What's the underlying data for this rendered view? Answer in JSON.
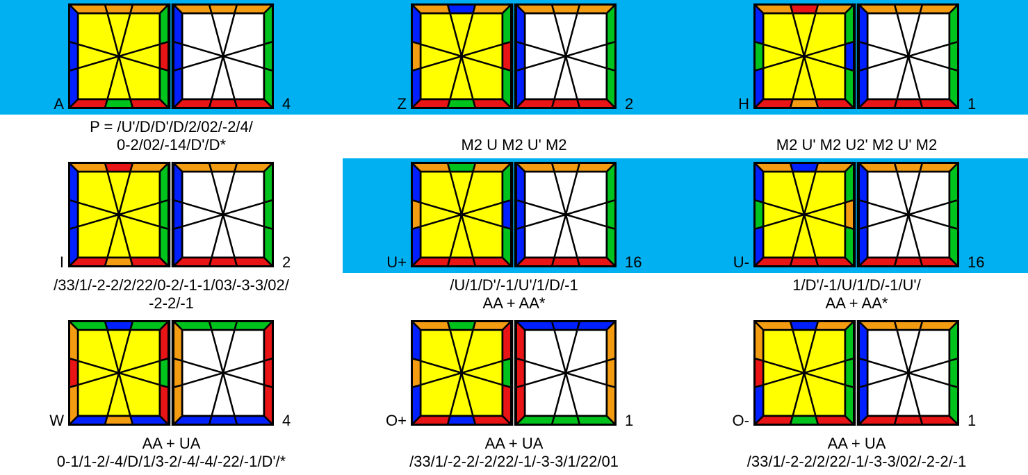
{
  "colors": {
    "highlight_band": "#00b0f0",
    "yellow": "#ffff00",
    "white": "#ffffff",
    "orange": "#f39c12",
    "red": "#e81416",
    "blue": "#0020ff",
    "green": "#00c21d",
    "outline": "#000000"
  },
  "cases": [
    {
      "name": "A",
      "count": "4",
      "highlight": true,
      "alg": [
        "P = /U'/D/D'/D/2/02/-2/4/",
        "0-2/02/-14/D'/D*"
      ],
      "left": {
        "top": [
          "O",
          "O",
          "O"
        ],
        "right": [
          "G",
          "R",
          "G"
        ],
        "bottom": [
          "R",
          "G",
          "R"
        ],
        "left": [
          "B",
          "B",
          "B"
        ]
      },
      "right": {
        "top": [
          "O",
          "O",
          "O"
        ],
        "right": [
          "G",
          "G",
          "G"
        ],
        "bottom": [
          "R",
          "R",
          "R"
        ],
        "left": [
          "B",
          "B",
          "B"
        ]
      }
    },
    {
      "name": "Z",
      "count": "2",
      "highlight": true,
      "alg": [
        "",
        "M2 U M2 U' M2"
      ],
      "left": {
        "top": [
          "O",
          "B",
          "O"
        ],
        "right": [
          "G",
          "R",
          "G"
        ],
        "bottom": [
          "R",
          "G",
          "R"
        ],
        "left": [
          "B",
          "O",
          "B"
        ]
      },
      "right": {
        "top": [
          "O",
          "O",
          "O"
        ],
        "right": [
          "G",
          "G",
          "G"
        ],
        "bottom": [
          "R",
          "R",
          "R"
        ],
        "left": [
          "B",
          "B",
          "B"
        ]
      }
    },
    {
      "name": "H",
      "count": "1",
      "highlight": true,
      "alg": [
        "",
        "M2 U' M2 U2' M2 U' M2"
      ],
      "left": {
        "top": [
          "O",
          "R",
          "O"
        ],
        "right": [
          "G",
          "B",
          "G"
        ],
        "bottom": [
          "R",
          "O",
          "R"
        ],
        "left": [
          "B",
          "G",
          "B"
        ]
      },
      "right": {
        "top": [
          "O",
          "O",
          "O"
        ],
        "right": [
          "G",
          "G",
          "G"
        ],
        "bottom": [
          "R",
          "R",
          "R"
        ],
        "left": [
          "B",
          "B",
          "B"
        ]
      }
    },
    {
      "name": "I",
      "count": "2",
      "highlight": false,
      "alg": [
        "/33/1/-2-2/2/22/0-2/-1-1/03/-3-3/02/",
        "-2-2/-1"
      ],
      "left": {
        "top": [
          "O",
          "R",
          "O"
        ],
        "right": [
          "G",
          "G",
          "G"
        ],
        "bottom": [
          "R",
          "O",
          "R"
        ],
        "left": [
          "B",
          "B",
          "B"
        ]
      },
      "right": {
        "top": [
          "O",
          "O",
          "O"
        ],
        "right": [
          "G",
          "G",
          "G"
        ],
        "bottom": [
          "R",
          "R",
          "R"
        ],
        "left": [
          "B",
          "B",
          "B"
        ]
      }
    },
    {
      "name": "U+",
      "count": "16",
      "highlight": true,
      "alg": [
        "/U/1/D'/-1/U'/1/D/-1",
        "AA + AA*"
      ],
      "left": {
        "top": [
          "O",
          "G",
          "O"
        ],
        "right": [
          "G",
          "B",
          "G"
        ],
        "bottom": [
          "R",
          "R",
          "R"
        ],
        "left": [
          "B",
          "O",
          "B"
        ]
      },
      "right": {
        "top": [
          "O",
          "O",
          "O"
        ],
        "right": [
          "G",
          "G",
          "G"
        ],
        "bottom": [
          "R",
          "R",
          "R"
        ],
        "left": [
          "B",
          "B",
          "B"
        ]
      }
    },
    {
      "name": "U-",
      "count": "16",
      "highlight": true,
      "alg": [
        "1/D'/-1/U/1/D/-1/U'/",
        "AA + AA*"
      ],
      "left": {
        "top": [
          "O",
          "B",
          "O"
        ],
        "right": [
          "G",
          "O",
          "G"
        ],
        "bottom": [
          "R",
          "R",
          "R"
        ],
        "left": [
          "B",
          "G",
          "B"
        ]
      },
      "right": {
        "top": [
          "O",
          "O",
          "O"
        ],
        "right": [
          "G",
          "G",
          "G"
        ],
        "bottom": [
          "R",
          "R",
          "R"
        ],
        "left": [
          "B",
          "B",
          "B"
        ]
      }
    },
    {
      "name": "W",
      "count": "4",
      "highlight": false,
      "alg": [
        "AA + UA",
        "0-1/1-2/-4/D/1/3-2/-4/-4/-22/-1/D'/*"
      ],
      "left": {
        "top": [
          "G",
          "B",
          "G"
        ],
        "right": [
          "R",
          "G",
          "R"
        ],
        "bottom": [
          "B",
          "O",
          "B"
        ],
        "left": [
          "O",
          "R",
          "O"
        ]
      },
      "right": {
        "top": [
          "G",
          "G",
          "G"
        ],
        "right": [
          "R",
          "R",
          "R"
        ],
        "bottom": [
          "B",
          "B",
          "B"
        ],
        "left": [
          "O",
          "O",
          "O"
        ]
      }
    },
    {
      "name": "O+",
      "count": "1",
      "highlight": false,
      "alg": [
        "AA + UA",
        "/33/1/-2-2/-2/22/-1/-3-3/1/22/01"
      ],
      "left": {
        "top": [
          "O",
          "G",
          "O"
        ],
        "right": [
          "R",
          "G",
          "R"
        ],
        "bottom": [
          "R",
          "B",
          "R"
        ],
        "left": [
          "B",
          "O",
          "B"
        ]
      },
      "right": {
        "top": [
          "B",
          "B",
          "B"
        ],
        "right": [
          "O",
          "O",
          "O"
        ],
        "bottom": [
          "G",
          "G",
          "G"
        ],
        "left": [
          "R",
          "R",
          "R"
        ]
      }
    },
    {
      "name": "O-",
      "count": "1",
      "highlight": false,
      "alg": [
        "AA + UA",
        "/33/1/-2-2/2/22/-1/-3-3/02/-2-2/-1"
      ],
      "left": {
        "top": [
          "O",
          "B",
          "O"
        ],
        "right": [
          "G",
          "G",
          "G"
        ],
        "bottom": [
          "R",
          "G",
          "R"
        ],
        "left": [
          "O",
          "R",
          "B"
        ]
      },
      "right": {
        "top": [
          "O",
          "O",
          "O"
        ],
        "right": [
          "G",
          "G",
          "G"
        ],
        "bottom": [
          "R",
          "R",
          "R"
        ],
        "left": [
          "B",
          "B",
          "B"
        ]
      }
    }
  ]
}
